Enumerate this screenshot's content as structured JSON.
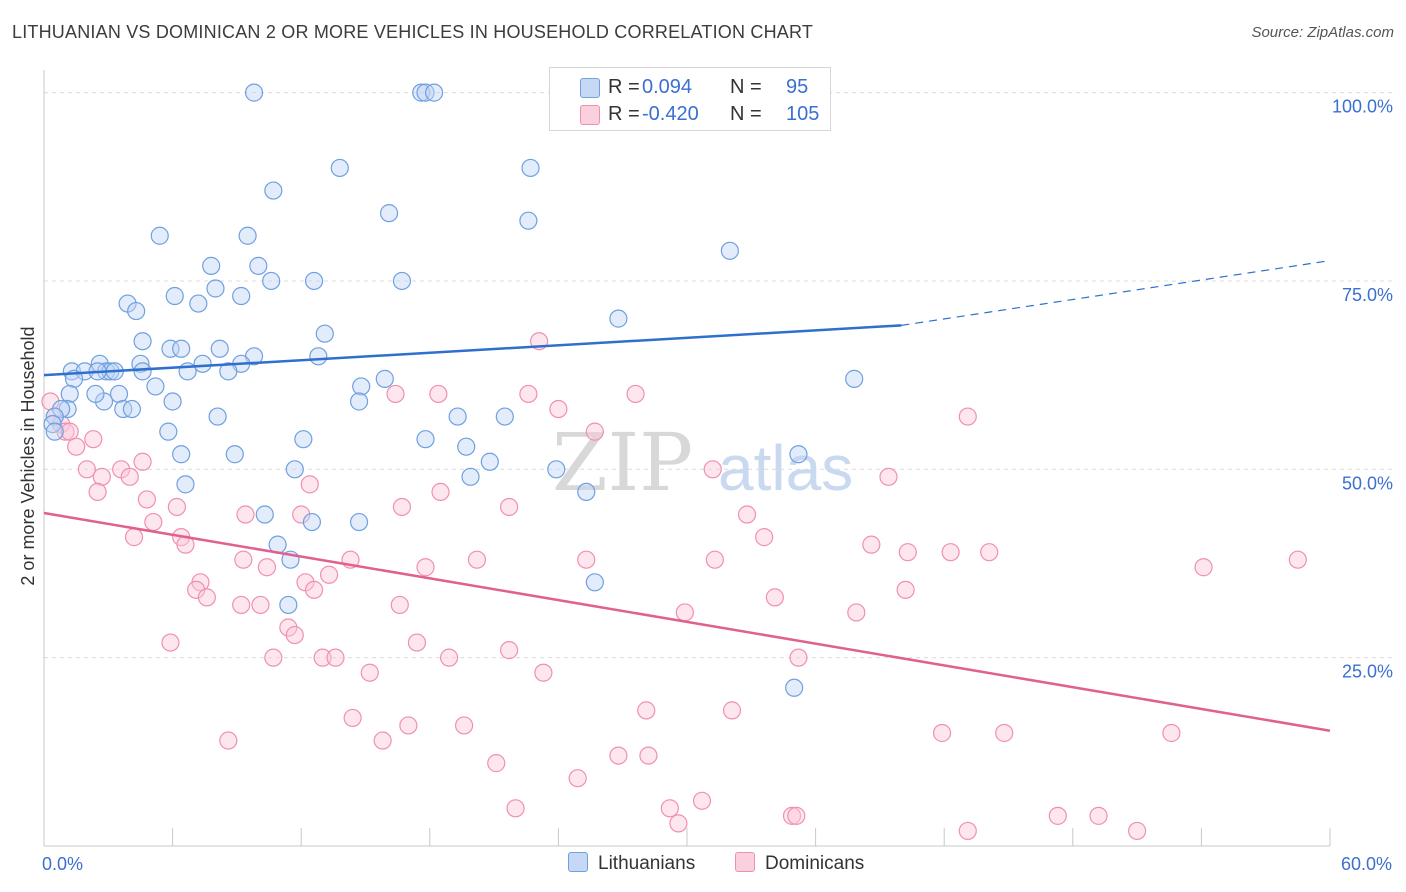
{
  "header": {
    "title": "LITHUANIAN VS DOMINICAN 2 OR MORE VEHICLES IN HOUSEHOLD CORRELATION CHART",
    "source": "Source: ZipAtlas.com"
  },
  "legend": {
    "rows": [
      {
        "r_label": "R =",
        "r_value": "0.094",
        "n_label": "N =",
        "n_value": "95",
        "color": "#6fa0e0"
      },
      {
        "r_label": "R =",
        "r_value": "-0.420",
        "n_label": "N =",
        "n_value": "105",
        "color": "#f090b0"
      }
    ]
  },
  "bottom_legend": {
    "items": [
      {
        "label": "Lithuanians",
        "color": "#6fa0e0"
      },
      {
        "label": "Dominicans",
        "color": "#f090b0"
      }
    ]
  },
  "watermark": {
    "part1": "ZIP",
    "part2": "atlas"
  },
  "chart_data": {
    "type": "scatter",
    "title": "LITHUANIAN VS DOMINICAN 2 OR MORE VEHICLES IN HOUSEHOLD CORRELATION CHART",
    "xlabel": "",
    "ylabel": "2 or more Vehicles in Household",
    "xlim": [
      0,
      60
    ],
    "ylim": [
      0,
      103
    ],
    "x_tick_labels": [
      {
        "value": 0,
        "label": "0.0%"
      },
      {
        "value": 60,
        "label": "60.0%"
      }
    ],
    "y_tick_labels": [
      {
        "value": 100,
        "label": "100.0%"
      },
      {
        "value": 75,
        "label": "75.0%"
      },
      {
        "value": 50,
        "label": "50.0%"
      },
      {
        "value": 25,
        "label": "25.0%"
      }
    ],
    "grid": "horizontal dashed",
    "series": [
      {
        "name": "Lithuanians",
        "color": "#6fa0e0",
        "points": [
          [
            9.8,
            100
          ],
          [
            17.6,
            100
          ],
          [
            17.8,
            100
          ],
          [
            18.2,
            100
          ],
          [
            24.4,
            100
          ],
          [
            27.3,
            100
          ],
          [
            32.2,
            100
          ],
          [
            13.8,
            90
          ],
          [
            22.7,
            90
          ],
          [
            10.7,
            87
          ],
          [
            16.1,
            84
          ],
          [
            22.6,
            83
          ],
          [
            5.4,
            81
          ],
          [
            9.5,
            81
          ],
          [
            32.0,
            79
          ],
          [
            7.8,
            77
          ],
          [
            10.0,
            77
          ],
          [
            10.6,
            75
          ],
          [
            12.6,
            75
          ],
          [
            16.7,
            75
          ],
          [
            8.0,
            74
          ],
          [
            6.1,
            73
          ],
          [
            9.2,
            73
          ],
          [
            7.2,
            72
          ],
          [
            3.9,
            72
          ],
          [
            4.3,
            71
          ],
          [
            26.8,
            70
          ],
          [
            13.1,
            68
          ],
          [
            4.6,
            67
          ],
          [
            8.2,
            66
          ],
          [
            5.9,
            66
          ],
          [
            6.4,
            66
          ],
          [
            9.8,
            65
          ],
          [
            12.8,
            65
          ],
          [
            7.4,
            64
          ],
          [
            9.2,
            64
          ],
          [
            4.5,
            64
          ],
          [
            2.6,
            64
          ],
          [
            2.9,
            63
          ],
          [
            3.1,
            63
          ],
          [
            1.3,
            63
          ],
          [
            1.9,
            63
          ],
          [
            2.5,
            63
          ],
          [
            3.3,
            63
          ],
          [
            6.7,
            63
          ],
          [
            8.6,
            63
          ],
          [
            4.6,
            63
          ],
          [
            1.4,
            62
          ],
          [
            15.9,
            62
          ],
          [
            37.8,
            62
          ],
          [
            14.8,
            61
          ],
          [
            5.2,
            61
          ],
          [
            1.2,
            60
          ],
          [
            3.5,
            60
          ],
          [
            2.8,
            59
          ],
          [
            6.0,
            59
          ],
          [
            2.4,
            60
          ],
          [
            14.7,
            59
          ],
          [
            1.1,
            58
          ],
          [
            3.7,
            58
          ],
          [
            4.1,
            58
          ],
          [
            0.8,
            58
          ],
          [
            0.5,
            57
          ],
          [
            0.4,
            56
          ],
          [
            0.5,
            55
          ],
          [
            8.1,
            57
          ],
          [
            21.5,
            57
          ],
          [
            19.3,
            57
          ],
          [
            5.8,
            55
          ],
          [
            17.8,
            54
          ],
          [
            12.1,
            54
          ],
          [
            19.7,
            53
          ],
          [
            6.4,
            52
          ],
          [
            8.9,
            52
          ],
          [
            20.8,
            51
          ],
          [
            35.2,
            52
          ],
          [
            11.7,
            50
          ],
          [
            23.9,
            50
          ],
          [
            19.9,
            49
          ],
          [
            6.6,
            48
          ],
          [
            25.3,
            47
          ],
          [
            10.3,
            44
          ],
          [
            12.5,
            43
          ],
          [
            14.7,
            43
          ],
          [
            10.9,
            40
          ],
          [
            11.5,
            38
          ],
          [
            25.7,
            35
          ],
          [
            11.4,
            32
          ],
          [
            35.0,
            21
          ]
        ]
      },
      {
        "name": "Dominicans",
        "color": "#f090b0",
        "points": [
          [
            0.3,
            59
          ],
          [
            0.5,
            57
          ],
          [
            0.8,
            56
          ],
          [
            1.0,
            55
          ],
          [
            1.2,
            55
          ],
          [
            2.3,
            54
          ],
          [
            1.5,
            53
          ],
          [
            4.6,
            51
          ],
          [
            2.0,
            50
          ],
          [
            3.6,
            50
          ],
          [
            2.7,
            49
          ],
          [
            4.0,
            49
          ],
          [
            2.5,
            47
          ],
          [
            6.2,
            45
          ],
          [
            9.4,
            44
          ],
          [
            16.4,
            60
          ],
          [
            18.4,
            60
          ],
          [
            22.6,
            60
          ],
          [
            27.6,
            60
          ],
          [
            24.0,
            58
          ],
          [
            23.1,
            67
          ],
          [
            25.7,
            55
          ],
          [
            43.1,
            57
          ],
          [
            12.4,
            48
          ],
          [
            18.5,
            47
          ],
          [
            16.7,
            45
          ],
          [
            21.7,
            45
          ],
          [
            12.0,
            44
          ],
          [
            31.2,
            50
          ],
          [
            39.4,
            49
          ],
          [
            32.8,
            44
          ],
          [
            4.8,
            46
          ],
          [
            5.1,
            43
          ],
          [
            6.4,
            41
          ],
          [
            4.2,
            41
          ],
          [
            13.3,
            36
          ],
          [
            6.6,
            40
          ],
          [
            9.3,
            38
          ],
          [
            10.4,
            37
          ],
          [
            14.3,
            38
          ],
          [
            17.8,
            37
          ],
          [
            20.2,
            38
          ],
          [
            25.3,
            38
          ],
          [
            31.3,
            38
          ],
          [
            33.6,
            41
          ],
          [
            38.6,
            40
          ],
          [
            40.3,
            39
          ],
          [
            42.3,
            39
          ],
          [
            44.1,
            39
          ],
          [
            54.1,
            37
          ],
          [
            58.5,
            38
          ],
          [
            7.3,
            35
          ],
          [
            7.1,
            34
          ],
          [
            7.6,
            33
          ],
          [
            9.2,
            32
          ],
          [
            10.1,
            32
          ],
          [
            12.2,
            35
          ],
          [
            12.6,
            34
          ],
          [
            16.6,
            32
          ],
          [
            29.9,
            31
          ],
          [
            34.1,
            33
          ],
          [
            37.9,
            31
          ],
          [
            40.2,
            34
          ],
          [
            5.9,
            27
          ],
          [
            10.7,
            25
          ],
          [
            11.4,
            29
          ],
          [
            11.7,
            28
          ],
          [
            13.0,
            25
          ],
          [
            13.6,
            25
          ],
          [
            15.2,
            23
          ],
          [
            17.4,
            27
          ],
          [
            18.9,
            25
          ],
          [
            21.7,
            26
          ],
          [
            23.3,
            23
          ],
          [
            35.2,
            25
          ],
          [
            14.4,
            17
          ],
          [
            17.0,
            16
          ],
          [
            19.6,
            16
          ],
          [
            28.1,
            18
          ],
          [
            32.1,
            18
          ],
          [
            8.6,
            14
          ],
          [
            15.8,
            14
          ],
          [
            21.1,
            11
          ],
          [
            26.8,
            12
          ],
          [
            28.2,
            12
          ],
          [
            24.9,
            9
          ],
          [
            41.9,
            15
          ],
          [
            44.8,
            15
          ],
          [
            52.6,
            15
          ],
          [
            22.0,
            5
          ],
          [
            29.2,
            5
          ],
          [
            30.7,
            6
          ],
          [
            29.6,
            3
          ],
          [
            34.9,
            4
          ],
          [
            35.1,
            4
          ],
          [
            47.3,
            4
          ],
          [
            49.2,
            4
          ],
          [
            43.1,
            2
          ],
          [
            51.0,
            2
          ]
        ]
      }
    ],
    "trendlines": [
      {
        "series": "Lithuanians",
        "x_start": 0.0,
        "y_start": 62.5,
        "x_end": 40.0,
        "y_end": 69.1,
        "dashed_extension_to": [
          60.0,
          77.7
        ],
        "color": "#2f6fce"
      },
      {
        "series": "Dominicans",
        "x_start": 0.0,
        "y_start": 44.2,
        "x_end": 60.0,
        "y_end": 15.3,
        "color": "#e0608e"
      }
    ]
  }
}
